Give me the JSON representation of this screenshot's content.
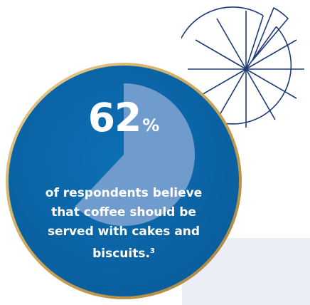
{
  "statistic": {
    "value": "62",
    "unit": "%",
    "fraction": 0.62,
    "caption_lines": [
      "of respondents believe",
      "that coffee should be",
      "served with cakes and"
    ],
    "caption_last": "biscuits.",
    "footnote": "3"
  },
  "colors": {
    "circle_fill": "#0b67a8",
    "wedge_fill": "#6f9ccd",
    "gold_ring": "#c9a557",
    "outline_stroke": "#1d3a78",
    "panel": "#eceef7"
  },
  "decor": {
    "pie_outline_icon": "segmented-pie-outline-icon"
  }
}
